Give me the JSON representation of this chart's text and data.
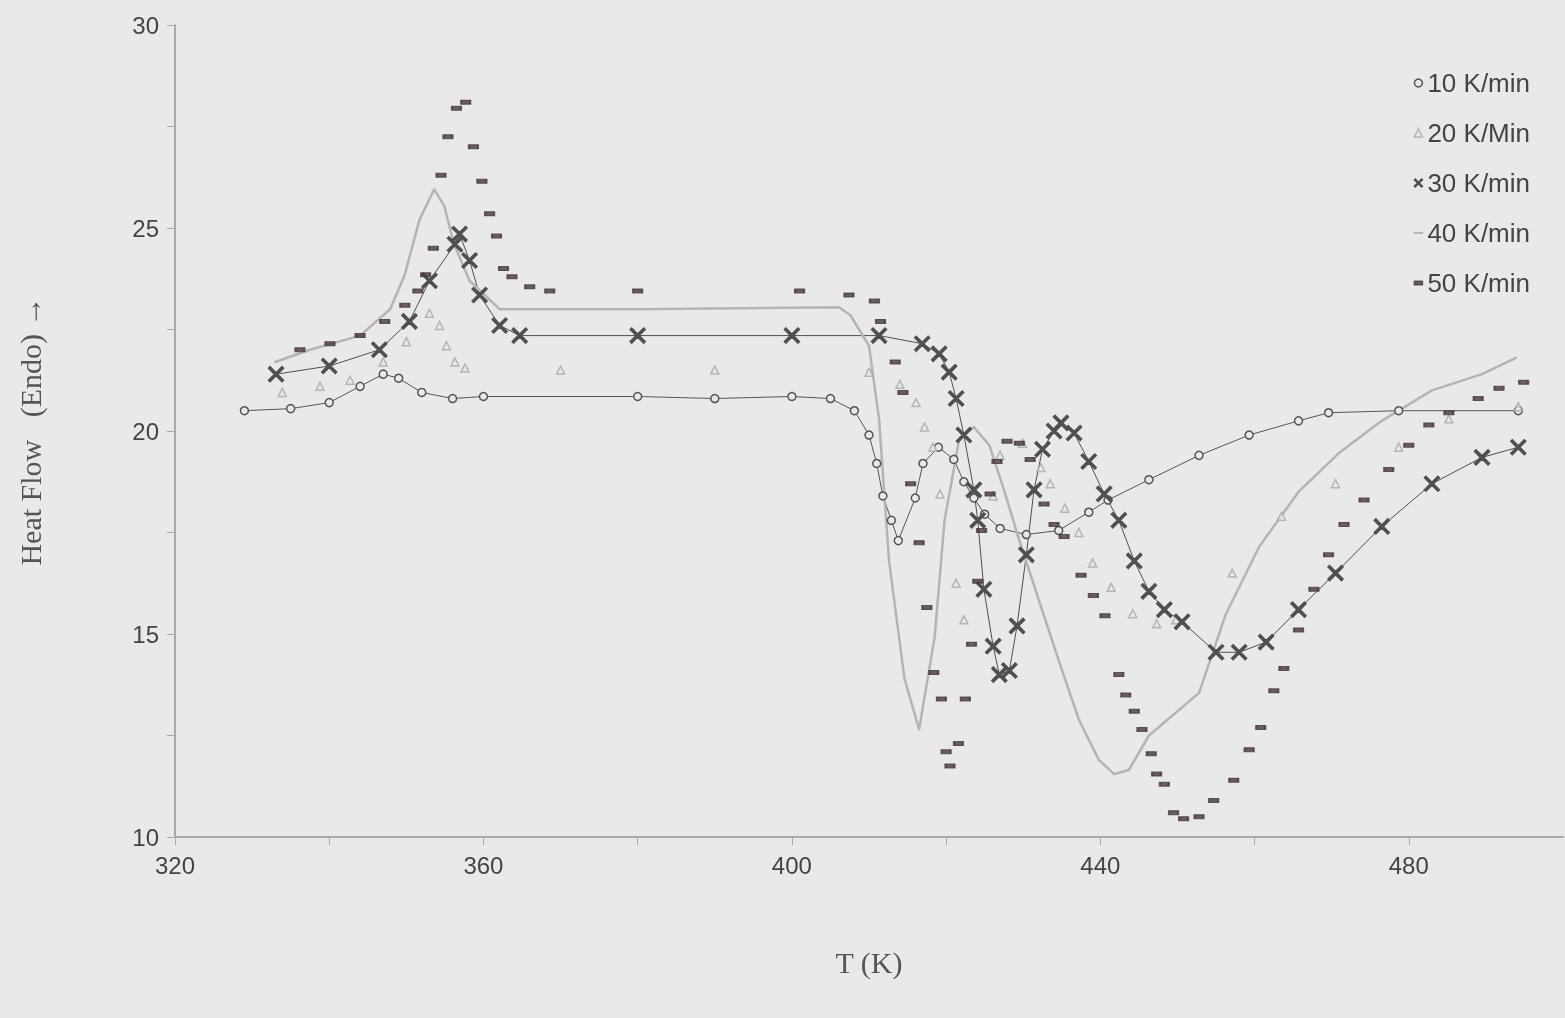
{
  "chart_data": {
    "type": "line",
    "xlabel": "T (K)",
    "ylabel": "Heat Flow   (Endo) →",
    "xlim": [
      320,
      500
    ],
    "xticks": [
      320,
      {
        "value": 340,
        "label": null
      },
      360,
      {
        "value": 380,
        "label": null
      },
      400,
      {
        "value": 420,
        "label": null
      },
      440,
      {
        "value": 460,
        "label": null
      },
      480
    ],
    "ylim": [
      10,
      30
    ],
    "yticks": [
      10,
      {
        "value": 12.5,
        "label": null
      },
      15,
      {
        "value": 17.5,
        "label": null
      },
      20,
      {
        "value": 22.5,
        "label": null
      },
      25,
      {
        "value": 27.5,
        "label": null
      },
      30
    ],
    "grid": false,
    "legend": "top right",
    "series": [
      {
        "name": "10 K/min",
        "marker": "circle",
        "color": "#555555",
        "x": [
          329,
          335,
          340,
          344,
          347,
          349,
          352,
          356,
          360,
          380,
          390,
          400,
          405,
          408.1,
          410,
          411,
          411.8,
          412.9,
          413.8,
          416,
          417,
          419,
          421,
          422.3,
          423.6,
          425,
          427,
          430.4,
          434.6,
          438.5,
          441,
          446.3,
          452.8,
          459.3,
          465.7,
          469.6,
          478.7,
          494.2
        ],
        "values": [
          20.5,
          20.55,
          20.7,
          21.1,
          21.4,
          21.3,
          20.95,
          20.8,
          20.85,
          20.85,
          20.8,
          20.85,
          20.8,
          20.5,
          19.9,
          19.2,
          18.4,
          17.8,
          17.3,
          18.35,
          19.2,
          19.6,
          19.3,
          18.75,
          18.35,
          17.95,
          17.6,
          17.45,
          17.55,
          18.0,
          18.3,
          18.8,
          19.4,
          19.9,
          20.25,
          20.45,
          20.5,
          20.5
        ]
      },
      {
        "name": "20 K/Min",
        "type": "scatter",
        "marker": "triangle",
        "color": "#a8a8a8",
        "x": [
          333.9,
          338.8,
          342.7,
          347,
          350,
          353,
          354.3,
          355.2,
          356.3,
          357.6,
          370,
          390,
          410,
          414,
          416.1,
          417.2,
          418.3,
          419.2,
          421.3,
          422.3,
          426.1,
          427,
          429.9,
          432.3,
          433.5,
          435.4,
          437.2,
          439,
          441.4,
          444.2,
          447.3,
          449.8,
          457.1,
          463.5,
          470.5,
          478.7,
          485.2,
          494.2
        ],
        "values": [
          20.95,
          21.1,
          21.25,
          21.7,
          22.2,
          22.9,
          22.6,
          22.1,
          21.7,
          21.55,
          21.5,
          21.5,
          21.45,
          21.15,
          20.7,
          20.1,
          19.6,
          18.45,
          16.25,
          15.35,
          18.4,
          19.4,
          19.7,
          19.1,
          18.7,
          18.1,
          17.5,
          16.75,
          16.15,
          15.5,
          15.25,
          15.35,
          16.5,
          17.9,
          18.7,
          19.6,
          20.3,
          20.6
        ]
      },
      {
        "name": "30 K/min",
        "marker": "cross",
        "color": "#505050",
        "x": [
          333.1,
          340,
          346.5,
          350.4,
          353,
          356.3,
          356.9,
          358.2,
          359.5,
          362.1,
          364.7,
          380,
          400,
          411.3,
          416.9,
          419.1,
          420.4,
          421.3,
          422.3,
          423.6,
          424.1,
          424.9,
          426.1,
          426.9,
          428.2,
          429.2,
          430.4,
          431.4,
          432.5,
          434,
          434.9,
          436.6,
          438.5,
          440.5,
          442.4,
          444.4,
          446.3,
          448.3,
          450.6,
          455,
          458,
          461.5,
          465.7,
          470.5,
          476.5,
          483,
          489.5,
          494.2
        ],
        "values": [
          21.4,
          21.6,
          22.0,
          22.7,
          23.7,
          24.6,
          24.85,
          24.2,
          23.35,
          22.6,
          22.35,
          22.35,
          22.35,
          22.35,
          22.15,
          21.9,
          21.45,
          20.8,
          19.9,
          18.55,
          17.8,
          16.1,
          14.7,
          14.0,
          14.1,
          15.2,
          16.95,
          18.55,
          19.55,
          20.0,
          20.2,
          19.95,
          19.25,
          18.45,
          17.8,
          16.8,
          16.05,
          15.6,
          15.3,
          14.55,
          14.55,
          14.8,
          15.6,
          16.5,
          17.65,
          18.7,
          19.35,
          19.6
        ]
      },
      {
        "name": "40 K/min",
        "marker": "none",
        "color": "#b4b4b4",
        "x": [
          333,
          337.5,
          344,
          347.9,
          349.8,
          351.7,
          353.6,
          354.9,
          356.2,
          358.2,
          362.1,
          380,
          406.1,
          407.6,
          410,
          411.3,
          412.6,
          414.6,
          416.5,
          418.5,
          419.8,
          421.7,
          423.6,
          425.6,
          427.5,
          429.5,
          432,
          434.6,
          437.2,
          439.8,
          441.8,
          443.7,
          446.3,
          452.8,
          456.3,
          460.6,
          465.7,
          470.9,
          476.5,
          483,
          489.5,
          493.9
        ],
        "values": [
          21.7,
          22.0,
          22.35,
          23.0,
          23.85,
          25.2,
          25.95,
          25.55,
          24.6,
          23.7,
          23.0,
          23.0,
          23.05,
          22.85,
          22.1,
          20.3,
          16.8,
          13.9,
          12.65,
          14.9,
          17.8,
          19.8,
          20.1,
          19.65,
          18.55,
          17.3,
          15.85,
          14.35,
          12.9,
          11.9,
          11.55,
          11.65,
          12.5,
          13.55,
          15.5,
          17.15,
          18.5,
          19.45,
          20.25,
          21.0,
          21.4,
          21.8
        ]
      },
      {
        "name": "50 K/min",
        "type": "scatter",
        "marker": "square",
        "color": "#4a3a3a",
        "x": [
          336.2,
          340.1,
          344,
          347.2,
          349.8,
          351.5,
          352.5,
          353.5,
          354.5,
          355.4,
          356.5,
          357.7,
          358.7,
          359.8,
          360.8,
          361.7,
          362.6,
          363.7,
          366,
          368.6,
          380,
          401,
          407.4,
          410.7,
          411.5,
          413.4,
          414.4,
          415.4,
          416.5,
          417.5,
          418.4,
          419.4,
          420,
          420.5,
          421.6,
          422.5,
          423.3,
          424.1,
          424.6,
          425.7,
          426.6,
          427.9,
          429.5,
          430.9,
          432.7,
          434,
          435.3,
          437.5,
          439.1,
          440.6,
          442.4,
          443.3,
          444.4,
          445.4,
          446.6,
          447.3,
          448.3,
          449.5,
          450.8,
          452.8,
          454.7,
          457.3,
          459.3,
          460.8,
          462.5,
          463.8,
          465.7,
          467.7,
          469.6,
          471.6,
          474.2,
          477.4,
          480,
          482.6,
          485.2,
          489,
          491.7,
          494.9
        ],
        "values": [
          22.0,
          22.15,
          22.35,
          22.7,
          23.1,
          23.45,
          23.85,
          24.5,
          26.3,
          27.25,
          27.95,
          28.1,
          27.0,
          26.15,
          25.35,
          24.8,
          24.0,
          23.8,
          23.55,
          23.45,
          23.45,
          23.45,
          23.35,
          23.2,
          22.7,
          21.7,
          20.95,
          18.7,
          17.25,
          15.65,
          14.05,
          13.4,
          12.1,
          11.75,
          12.3,
          13.4,
          14.75,
          16.3,
          17.55,
          18.45,
          19.25,
          19.75,
          19.7,
          19.3,
          18.2,
          17.7,
          17.4,
          16.45,
          15.95,
          15.45,
          14.0,
          13.5,
          13.1,
          12.65,
          12.05,
          11.55,
          11.3,
          10.6,
          10.45,
          10.5,
          10.9,
          11.4,
          12.15,
          12.7,
          13.6,
          14.15,
          15.1,
          16.1,
          16.95,
          17.7,
          18.3,
          19.05,
          19.65,
          20.15,
          20.45,
          20.8,
          21.05,
          21.2
        ]
      }
    ]
  }
}
